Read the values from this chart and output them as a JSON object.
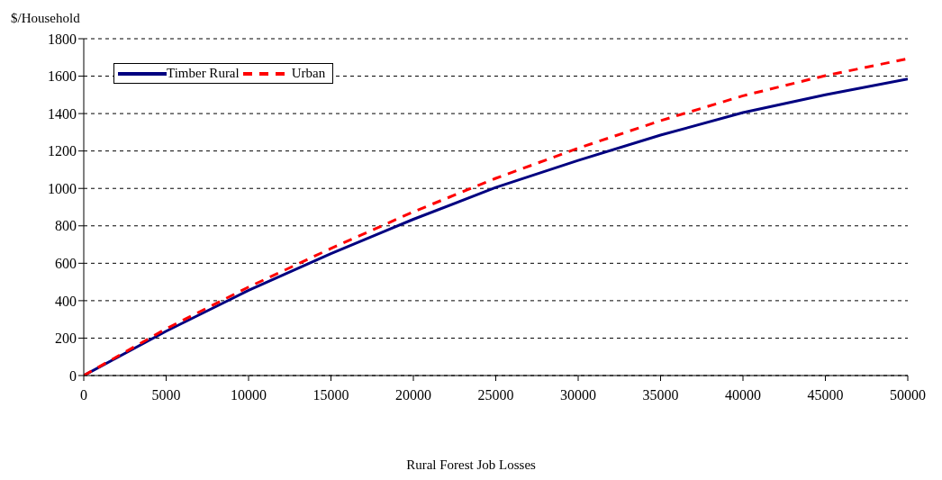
{
  "chart_data": {
    "type": "line",
    "xlabel": "Rural Forest Job Losses",
    "ylabel": "$/Household",
    "x": [
      0,
      5000,
      10000,
      15000,
      20000,
      25000,
      30000,
      35000,
      40000,
      45000,
      50000
    ],
    "series": [
      {
        "name": "Timber Rural",
        "color": "#000080",
        "line_style": "solid",
        "values": [
          0,
          237,
          455,
          652,
          835,
          1005,
          1150,
          1285,
          1405,
          1500,
          1585
        ]
      },
      {
        "name": "Urban",
        "color": "#ff0000",
        "line_style": "dashed",
        "values": [
          0,
          250,
          473,
          679,
          875,
          1054,
          1215,
          1362,
          1495,
          1603,
          1693
        ]
      }
    ],
    "xlim": [
      0,
      50000
    ],
    "xticks": [
      0,
      5000,
      10000,
      15000,
      20000,
      25000,
      30000,
      35000,
      40000,
      45000,
      50000
    ],
    "ylim": [
      0,
      1800
    ],
    "yticks": [
      0,
      200,
      400,
      600,
      800,
      1000,
      1200,
      1400,
      1600,
      1800
    ],
    "grid": "y",
    "legend": "top left",
    "marker": "none"
  }
}
